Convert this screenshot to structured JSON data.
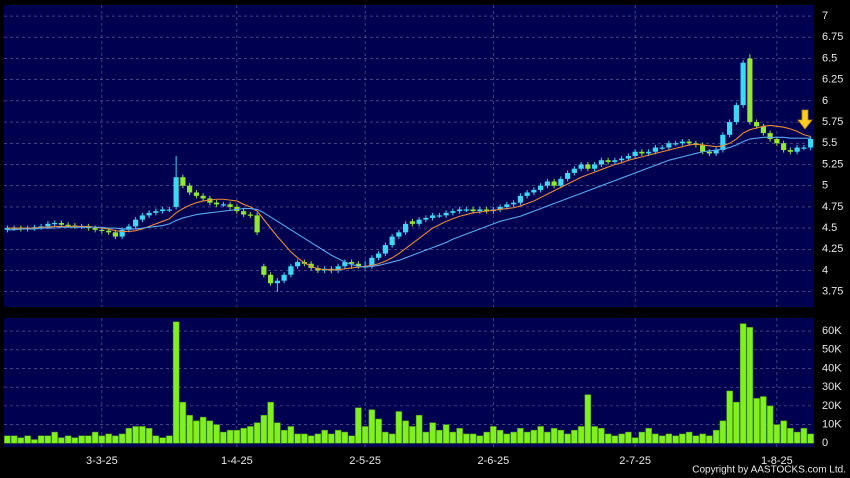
{
  "chart_data": {
    "type": "candlestick",
    "categories": [
      null,
      null,
      null,
      null,
      null,
      null,
      null,
      null,
      null,
      null,
      null,
      null,
      null,
      null,
      "3-3-25",
      null,
      null,
      null,
      null,
      null,
      null,
      null,
      null,
      null,
      null,
      null,
      null,
      null,
      null,
      null,
      null,
      null,
      null,
      null,
      "1-4-25",
      null,
      null,
      null,
      null,
      null,
      null,
      null,
      null,
      null,
      null,
      null,
      null,
      null,
      null,
      null,
      null,
      null,
      null,
      "2-5-25",
      null,
      null,
      null,
      null,
      null,
      null,
      null,
      null,
      null,
      null,
      null,
      null,
      null,
      null,
      null,
      null,
      null,
      null,
      "2-6-25",
      null,
      null,
      null,
      null,
      null,
      null,
      null,
      null,
      null,
      null,
      null,
      null,
      null,
      null,
      null,
      null,
      null,
      null,
      null,
      null,
      "2-7-25",
      null,
      null,
      null,
      null,
      null,
      null,
      null,
      null,
      null,
      null,
      null,
      null,
      null,
      null,
      null,
      null,
      null,
      null,
      null,
      null,
      "1-8-25",
      null,
      null,
      null,
      null,
      null
    ],
    "open": [
      4.48,
      4.5,
      4.5,
      4.49,
      4.5,
      4.51,
      4.52,
      4.55,
      4.56,
      4.54,
      4.53,
      4.52,
      4.52,
      4.5,
      4.48,
      4.47,
      4.45,
      4.4,
      4.48,
      4.52,
      4.6,
      4.65,
      4.68,
      4.7,
      4.72,
      4.75,
      5.1,
      5.0,
      4.92,
      4.88,
      4.85,
      4.8,
      4.78,
      4.78,
      4.75,
      4.7,
      4.66,
      4.65,
      4.05,
      3.95,
      3.85,
      3.88,
      3.95,
      4.05,
      4.1,
      4.08,
      4.03,
      4.0,
      4.02,
      4.0,
      4.05,
      4.1,
      4.08,
      4.05,
      4.05,
      4.15,
      4.2,
      4.3,
      4.4,
      4.45,
      4.58,
      4.55,
      4.6,
      4.62,
      4.65,
      4.65,
      4.68,
      4.7,
      4.72,
      4.72,
      4.7,
      4.72,
      4.7,
      4.72,
      4.75,
      4.78,
      4.8,
      4.88,
      4.92,
      4.95,
      5.0,
      5.05,
      5.0,
      5.08,
      5.15,
      5.2,
      5.25,
      5.2,
      5.25,
      5.3,
      5.28,
      5.3,
      5.32,
      5.35,
      5.4,
      5.38,
      5.4,
      5.45,
      5.45,
      5.5,
      5.5,
      5.52,
      5.5,
      5.48,
      5.4,
      5.38,
      5.42,
      5.6,
      5.75,
      5.95,
      6.5,
      5.75,
      5.7,
      5.62,
      5.55,
      5.5,
      5.42,
      5.4,
      5.45,
      5.45
    ],
    "high": [
      4.53,
      4.53,
      4.53,
      4.53,
      4.54,
      4.55,
      4.58,
      4.59,
      4.59,
      4.57,
      4.56,
      4.55,
      4.55,
      4.53,
      4.51,
      4.5,
      4.48,
      4.51,
      4.55,
      4.63,
      4.68,
      4.71,
      4.73,
      4.75,
      4.75,
      5.35,
      5.13,
      5.03,
      4.95,
      4.91,
      4.88,
      4.83,
      4.81,
      4.81,
      4.78,
      4.73,
      4.69,
      4.68,
      4.08,
      3.98,
      3.91,
      3.98,
      4.08,
      4.13,
      4.13,
      4.11,
      4.06,
      4.05,
      4.05,
      4.08,
      4.13,
      4.13,
      4.11,
      4.11,
      4.18,
      4.23,
      4.33,
      4.43,
      4.48,
      4.58,
      4.61,
      4.63,
      4.65,
      4.68,
      4.68,
      4.71,
      4.73,
      4.75,
      4.75,
      4.75,
      4.75,
      4.75,
      4.75,
      4.78,
      4.81,
      4.83,
      4.91,
      4.95,
      4.98,
      5.03,
      5.08,
      5.08,
      5.11,
      5.18,
      5.23,
      5.28,
      5.28,
      5.28,
      5.33,
      5.33,
      5.33,
      5.35,
      5.38,
      5.43,
      5.43,
      5.43,
      5.48,
      5.48,
      5.53,
      5.53,
      5.55,
      5.55,
      5.53,
      5.51,
      5.43,
      5.45,
      5.63,
      5.78,
      5.98,
      6.48,
      6.55,
      5.78,
      5.73,
      5.65,
      5.58,
      5.53,
      5.45,
      5.48,
      5.48,
      5.58
    ],
    "low": [
      4.45,
      4.47,
      4.46,
      4.46,
      4.47,
      4.48,
      4.49,
      4.52,
      4.51,
      4.5,
      4.49,
      4.49,
      4.47,
      4.45,
      4.44,
      4.42,
      4.37,
      4.37,
      4.45,
      4.49,
      4.57,
      4.62,
      4.65,
      4.67,
      4.69,
      4.72,
      4.97,
      4.89,
      4.85,
      4.82,
      4.77,
      4.75,
      4.75,
      4.72,
      4.67,
      4.63,
      4.62,
      4.42,
      3.92,
      3.82,
      3.75,
      3.85,
      3.92,
      4.02,
      4.05,
      4.0,
      3.97,
      3.97,
      3.97,
      3.97,
      4.02,
      4.02,
      4.02,
      4.02,
      4.02,
      4.12,
      4.17,
      4.27,
      4.37,
      4.42,
      4.52,
      4.52,
      4.57,
      4.59,
      4.62,
      4.62,
      4.65,
      4.67,
      4.69,
      4.67,
      4.67,
      4.67,
      4.67,
      4.69,
      4.72,
      4.75,
      4.77,
      4.85,
      4.89,
      4.92,
      4.97,
      4.97,
      4.97,
      5.05,
      5.12,
      5.17,
      5.17,
      5.17,
      5.22,
      5.25,
      5.25,
      5.27,
      5.29,
      5.32,
      5.35,
      5.35,
      5.37,
      5.42,
      5.42,
      5.47,
      5.47,
      5.47,
      5.45,
      5.37,
      5.35,
      5.35,
      5.39,
      5.57,
      5.72,
      5.92,
      5.72,
      5.67,
      5.59,
      5.52,
      5.47,
      5.39,
      5.37,
      5.37,
      5.42,
      5.42
    ],
    "close": [
      4.5,
      4.5,
      4.49,
      4.5,
      4.51,
      4.52,
      4.55,
      4.56,
      4.54,
      4.53,
      4.52,
      4.52,
      4.5,
      4.48,
      4.47,
      4.45,
      4.4,
      4.48,
      4.52,
      4.6,
      4.65,
      4.68,
      4.7,
      4.72,
      4.72,
      5.1,
      5.0,
      4.92,
      4.88,
      4.85,
      4.8,
      4.78,
      4.78,
      4.75,
      4.7,
      4.66,
      4.65,
      4.45,
      3.95,
      3.85,
      3.88,
      3.95,
      4.05,
      4.1,
      4.08,
      4.03,
      4.0,
      4.02,
      4.0,
      4.05,
      4.1,
      4.08,
      4.05,
      4.05,
      4.15,
      4.2,
      4.3,
      4.4,
      4.45,
      4.55,
      4.55,
      4.6,
      4.62,
      4.65,
      4.65,
      4.68,
      4.7,
      4.72,
      4.72,
      4.7,
      4.72,
      4.7,
      4.72,
      4.75,
      4.78,
      4.8,
      4.88,
      4.92,
      4.95,
      5.0,
      5.05,
      5.0,
      5.08,
      5.15,
      5.2,
      5.25,
      5.2,
      5.25,
      5.3,
      5.28,
      5.3,
      5.32,
      5.35,
      5.4,
      5.38,
      5.4,
      5.45,
      5.45,
      5.5,
      5.5,
      5.52,
      5.5,
      5.48,
      5.4,
      5.38,
      5.42,
      5.6,
      5.75,
      5.95,
      6.45,
      5.75,
      5.7,
      5.62,
      5.55,
      5.5,
      5.42,
      5.4,
      5.45,
      5.45,
      5.55
    ],
    "up_color": "#3fd8f4",
    "down_color": "#90e832",
    "series": [
      {
        "color": "#e88a3c",
        "values": [
          4.5,
          4.5,
          4.5,
          4.5,
          4.5,
          4.51,
          4.51,
          4.52,
          4.52,
          4.52,
          4.52,
          4.52,
          4.52,
          4.51,
          4.5,
          4.49,
          4.47,
          4.46,
          4.46,
          4.47,
          4.49,
          4.52,
          4.55,
          4.58,
          4.61,
          4.68,
          4.73,
          4.77,
          4.8,
          4.82,
          4.83,
          4.84,
          4.84,
          4.83,
          4.82,
          4.78,
          4.75,
          4.7,
          4.6,
          4.5,
          4.4,
          4.31,
          4.22,
          4.15,
          4.09,
          4.05,
          4.02,
          4.01,
          4.01,
          4.01,
          4.02,
          4.03,
          4.04,
          4.05,
          4.06,
          4.08,
          4.11,
          4.15,
          4.2,
          4.26,
          4.32,
          4.38,
          4.44,
          4.5,
          4.54,
          4.58,
          4.61,
          4.64,
          4.66,
          4.68,
          4.69,
          4.7,
          4.71,
          4.72,
          4.73,
          4.74,
          4.76,
          4.79,
          4.82,
          4.86,
          4.9,
          4.94,
          4.98,
          5.02,
          5.06,
          5.1,
          5.13,
          5.16,
          5.19,
          5.22,
          5.25,
          5.27,
          5.3,
          5.32,
          5.34,
          5.36,
          5.38,
          5.4,
          5.42,
          5.44,
          5.46,
          5.48,
          5.49,
          5.48,
          5.47,
          5.46,
          5.47,
          5.5,
          5.55,
          5.62,
          5.66,
          5.68,
          5.7,
          5.71,
          5.7,
          5.69,
          5.67,
          5.64,
          5.6,
          5.58
        ]
      },
      {
        "color": "#5aa8f0",
        "values": [
          4.48,
          4.48,
          4.49,
          4.49,
          4.49,
          4.5,
          4.5,
          4.5,
          4.51,
          4.51,
          4.51,
          4.51,
          4.51,
          4.51,
          4.51,
          4.5,
          4.5,
          4.49,
          4.49,
          4.49,
          4.5,
          4.51,
          4.52,
          4.53,
          4.55,
          4.59,
          4.62,
          4.64,
          4.66,
          4.67,
          4.68,
          4.69,
          4.7,
          4.71,
          4.72,
          4.73,
          4.73,
          4.72,
          4.68,
          4.63,
          4.58,
          4.53,
          4.48,
          4.43,
          4.38,
          4.33,
          4.28,
          4.23,
          4.18,
          4.14,
          4.1,
          4.07,
          4.05,
          4.04,
          4.05,
          4.06,
          4.08,
          4.1,
          4.12,
          4.15,
          4.18,
          4.21,
          4.24,
          4.27,
          4.3,
          4.33,
          4.37,
          4.4,
          4.43,
          4.46,
          4.49,
          4.52,
          4.55,
          4.58,
          4.6,
          4.62,
          4.64,
          4.67,
          4.7,
          4.73,
          4.76,
          4.79,
          4.82,
          4.85,
          4.88,
          4.91,
          4.94,
          4.97,
          5.0,
          5.03,
          5.06,
          5.09,
          5.12,
          5.15,
          5.18,
          5.21,
          5.24,
          5.27,
          5.3,
          5.32,
          5.34,
          5.36,
          5.38,
          5.4,
          5.41,
          5.42,
          5.43,
          5.45,
          5.48,
          5.52,
          5.55,
          5.56,
          5.57,
          5.57,
          5.57,
          5.57,
          5.56,
          5.56,
          5.56,
          5.56
        ]
      }
    ],
    "ylim": [
      3.57,
      7.13
    ],
    "yticks": [
      3.75,
      4,
      4.25,
      4.5,
      4.75,
      5,
      5.25,
      5.5,
      5.75,
      6,
      6.25,
      6.5,
      6.75,
      7
    ],
    "grid": true,
    "volume": {
      "color": "#80f020",
      "values": [
        4000,
        4000,
        3000,
        4000,
        2000,
        4000,
        4000,
        6000,
        3000,
        4000,
        3000,
        4000,
        4000,
        6000,
        4000,
        5000,
        4000,
        5000,
        8000,
        9000,
        9000,
        8000,
        4000,
        3000,
        4000,
        65000,
        22000,
        15000,
        12000,
        14000,
        12000,
        10000,
        6000,
        7000,
        7000,
        8000,
        9000,
        11000,
        15000,
        22000,
        11000,
        7000,
        9000,
        5000,
        5000,
        4000,
        5000,
        7000,
        5000,
        7000,
        6000,
        4000,
        19000,
        9000,
        18000,
        13000,
        6000,
        5000,
        17000,
        12000,
        9000,
        15000,
        6000,
        11000,
        7000,
        10000,
        6000,
        8000,
        5000,
        5000,
        4000,
        6000,
        9000,
        7000,
        5000,
        6000,
        8000,
        6000,
        7000,
        9000,
        6000,
        8000,
        7000,
        5000,
        7000,
        9000,
        26000,
        9000,
        8000,
        5000,
        4000,
        5000,
        6000,
        3000,
        6000,
        8000,
        5000,
        4000,
        5000,
        4000,
        5000,
        6000,
        4000,
        5000,
        4000,
        7000,
        12000,
        28000,
        22000,
        64000,
        62000,
        24000,
        25000,
        20000,
        10000,
        12000,
        8000,
        6000,
        8000,
        5000
      ],
      "ylim": [
        -2000,
        67000
      ],
      "yticks": [
        0,
        {
          "value": 10000,
          "label": "10K"
        },
        {
          "value": 20000,
          "label": "20K"
        },
        {
          "value": 30000,
          "label": "30K"
        },
        {
          "value": 40000,
          "label": "40K"
        },
        {
          "value": 50000,
          "label": "50K"
        },
        {
          "value": 60000,
          "label": "60K"
        }
      ]
    }
  },
  "footer": "Copyright by AASTOCKS.com Ltd."
}
